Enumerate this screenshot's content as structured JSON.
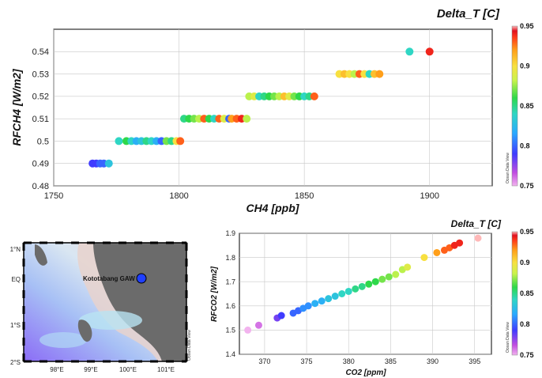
{
  "chart_data": [
    {
      "type": "scatter",
      "title": "Delta_T [C]",
      "xlabel": "CH4 [ppb]",
      "ylabel": "RFCH4 [W/m2]",
      "xlim": [
        1750,
        1925
      ],
      "ylim": [
        0.48,
        0.55
      ],
      "xticks": [
        "1750",
        "1800",
        "1850",
        "1900"
      ],
      "yticks": [
        "0.48",
        "0.49",
        "0.5",
        "0.51",
        "0.52",
        "0.53",
        "0.54"
      ],
      "grid": true,
      "colorbar": {
        "label": "Delta_T [C]",
        "range": [
          0.75,
          0.95
        ],
        "ticks": [
          "0.75",
          "0.8",
          "0.85",
          "0.9",
          "0.95"
        ],
        "side_text": "Ocean Data View"
      },
      "points": [
        {
          "x": 1765.5,
          "y": 0.49,
          "c": 0.79
        },
        {
          "x": 1767,
          "y": 0.49,
          "c": 0.79
        },
        {
          "x": 1768.5,
          "y": 0.49,
          "c": 0.8
        },
        {
          "x": 1770,
          "y": 0.49,
          "c": 0.8
        },
        {
          "x": 1772,
          "y": 0.49,
          "c": 0.83
        },
        {
          "x": 1776,
          "y": 0.5,
          "c": 0.84
        },
        {
          "x": 1779,
          "y": 0.5,
          "c": 0.86
        },
        {
          "x": 1781,
          "y": 0.5,
          "c": 0.84
        },
        {
          "x": 1783,
          "y": 0.5,
          "c": 0.82
        },
        {
          "x": 1785,
          "y": 0.5,
          "c": 0.83
        },
        {
          "x": 1787,
          "y": 0.5,
          "c": 0.85
        },
        {
          "x": 1789,
          "y": 0.5,
          "c": 0.84
        },
        {
          "x": 1791,
          "y": 0.5,
          "c": 0.82
        },
        {
          "x": 1793,
          "y": 0.5,
          "c": 0.8
        },
        {
          "x": 1795,
          "y": 0.5,
          "c": 0.87
        },
        {
          "x": 1797,
          "y": 0.5,
          "c": 0.85
        },
        {
          "x": 1799,
          "y": 0.5,
          "c": 0.9
        },
        {
          "x": 1800.5,
          "y": 0.5,
          "c": 0.93
        },
        {
          "x": 1802,
          "y": 0.51,
          "c": 0.85
        },
        {
          "x": 1804,
          "y": 0.51,
          "c": 0.86
        },
        {
          "x": 1806,
          "y": 0.51,
          "c": 0.87
        },
        {
          "x": 1808,
          "y": 0.51,
          "c": 0.88
        },
        {
          "x": 1810,
          "y": 0.51,
          "c": 0.93
        },
        {
          "x": 1812,
          "y": 0.51,
          "c": 0.86
        },
        {
          "x": 1814,
          "y": 0.51,
          "c": 0.84
        },
        {
          "x": 1816,
          "y": 0.51,
          "c": 0.93
        },
        {
          "x": 1818,
          "y": 0.51,
          "c": 0.89
        },
        {
          "x": 1820,
          "y": 0.51,
          "c": 0.8
        },
        {
          "x": 1821,
          "y": 0.51,
          "c": 0.92
        },
        {
          "x": 1823,
          "y": 0.51,
          "c": 0.93
        },
        {
          "x": 1825,
          "y": 0.51,
          "c": 0.94
        },
        {
          "x": 1827,
          "y": 0.51,
          "c": 0.88
        },
        {
          "x": 1828,
          "y": 0.52,
          "c": 0.88
        },
        {
          "x": 1830,
          "y": 0.52,
          "c": 0.89
        },
        {
          "x": 1832,
          "y": 0.52,
          "c": 0.84
        },
        {
          "x": 1834,
          "y": 0.52,
          "c": 0.85
        },
        {
          "x": 1836,
          "y": 0.52,
          "c": 0.86
        },
        {
          "x": 1838,
          "y": 0.52,
          "c": 0.87
        },
        {
          "x": 1840,
          "y": 0.52,
          "c": 0.88
        },
        {
          "x": 1842,
          "y": 0.52,
          "c": 0.91
        },
        {
          "x": 1844,
          "y": 0.52,
          "c": 0.89
        },
        {
          "x": 1846,
          "y": 0.52,
          "c": 0.87
        },
        {
          "x": 1848,
          "y": 0.52,
          "c": 0.86
        },
        {
          "x": 1850,
          "y": 0.52,
          "c": 0.84
        },
        {
          "x": 1852,
          "y": 0.52,
          "c": 0.85
        },
        {
          "x": 1854,
          "y": 0.52,
          "c": 0.93
        },
        {
          "x": 1864,
          "y": 0.53,
          "c": 0.9
        },
        {
          "x": 1866,
          "y": 0.53,
          "c": 0.91
        },
        {
          "x": 1868,
          "y": 0.53,
          "c": 0.9
        },
        {
          "x": 1870,
          "y": 0.53,
          "c": 0.88
        },
        {
          "x": 1872,
          "y": 0.53,
          "c": 0.93
        },
        {
          "x": 1874,
          "y": 0.53,
          "c": 0.9
        },
        {
          "x": 1876,
          "y": 0.53,
          "c": 0.84
        },
        {
          "x": 1878,
          "y": 0.53,
          "c": 0.91
        },
        {
          "x": 1880,
          "y": 0.53,
          "c": 0.92
        },
        {
          "x": 1892,
          "y": 0.54,
          "c": 0.84
        },
        {
          "x": 1900,
          "y": 0.54,
          "c": 0.94
        }
      ]
    },
    {
      "type": "scatter",
      "title": "Delta_T [C]",
      "xlabel": "CO2 [ppm]",
      "ylabel": "RFCO2 [W/m2]",
      "xlim": [
        367,
        397
      ],
      "ylim": [
        1.4,
        1.9
      ],
      "xticks": [
        "370",
        "375",
        "380",
        "385",
        "390",
        "395"
      ],
      "yticks": [
        "1.4",
        "1.5",
        "1.6",
        "1.7",
        "1.8",
        "1.9"
      ],
      "grid": true,
      "colorbar": {
        "label": "Delta_T [C]",
        "range": [
          0.75,
          0.95
        ],
        "ticks": [
          "0.75",
          "0.8",
          "0.85",
          "0.9",
          "0.95"
        ],
        "side_text": "Ocean Data View"
      },
      "points": [
        {
          "x": 368.0,
          "y": 1.5,
          "c": 0.75
        },
        {
          "x": 369.3,
          "y": 1.52,
          "c": 0.76
        },
        {
          "x": 371.5,
          "y": 1.55,
          "c": 0.78
        },
        {
          "x": 372.0,
          "y": 1.56,
          "c": 0.79
        },
        {
          "x": 373.4,
          "y": 1.57,
          "c": 0.8
        },
        {
          "x": 374.0,
          "y": 1.58,
          "c": 0.8
        },
        {
          "x": 374.6,
          "y": 1.59,
          "c": 0.81
        },
        {
          "x": 375.2,
          "y": 1.6,
          "c": 0.81
        },
        {
          "x": 376.0,
          "y": 1.61,
          "c": 0.82
        },
        {
          "x": 376.8,
          "y": 1.62,
          "c": 0.82
        },
        {
          "x": 377.6,
          "y": 1.63,
          "c": 0.83
        },
        {
          "x": 378.4,
          "y": 1.64,
          "c": 0.83
        },
        {
          "x": 379.2,
          "y": 1.65,
          "c": 0.84
        },
        {
          "x": 380.0,
          "y": 1.66,
          "c": 0.84
        },
        {
          "x": 380.8,
          "y": 1.67,
          "c": 0.85
        },
        {
          "x": 381.6,
          "y": 1.68,
          "c": 0.85
        },
        {
          "x": 382.4,
          "y": 1.69,
          "c": 0.86
        },
        {
          "x": 383.2,
          "y": 1.7,
          "c": 0.86
        },
        {
          "x": 384.0,
          "y": 1.71,
          "c": 0.87
        },
        {
          "x": 384.8,
          "y": 1.72,
          "c": 0.87
        },
        {
          "x": 385.6,
          "y": 1.73,
          "c": 0.88
        },
        {
          "x": 386.4,
          "y": 1.75,
          "c": 0.88
        },
        {
          "x": 387.0,
          "y": 1.76,
          "c": 0.89
        },
        {
          "x": 389.0,
          "y": 1.8,
          "c": 0.9
        },
        {
          "x": 390.5,
          "y": 1.82,
          "c": 0.92
        },
        {
          "x": 391.4,
          "y": 1.83,
          "c": 0.93
        },
        {
          "x": 392.0,
          "y": 1.84,
          "c": 0.93
        },
        {
          "x": 392.6,
          "y": 1.85,
          "c": 0.94
        },
        {
          "x": 393.2,
          "y": 1.86,
          "c": 0.94
        },
        {
          "x": 395.4,
          "y": 1.88,
          "c": 0.95
        }
      ]
    }
  ],
  "map": {
    "station_label": "Kototabang GAW",
    "lat_labels": [
      "1°N",
      "EQ",
      "1°S",
      "2°S"
    ],
    "lon_labels": [
      "98°E",
      "99°E",
      "100°E",
      "101°E"
    ],
    "side_text": "Ocean Data View",
    "colors": {
      "land": "#6b6b6b",
      "station": "#1f3fff"
    }
  }
}
